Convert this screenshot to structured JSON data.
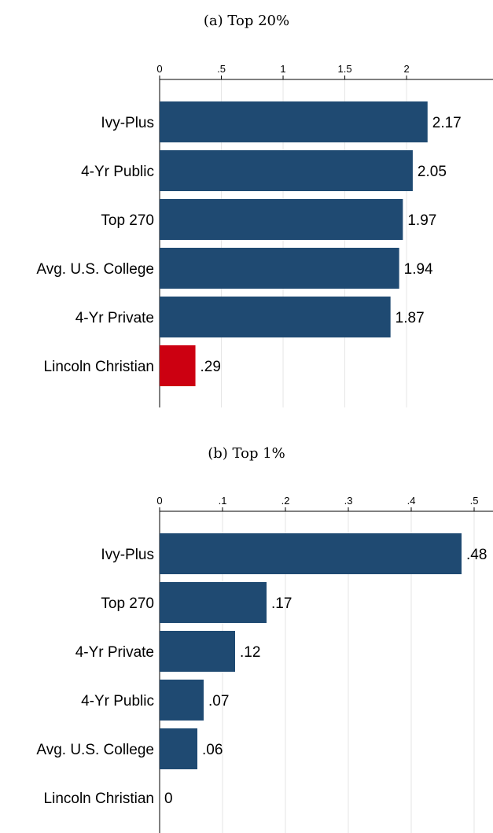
{
  "chart_data": [
    {
      "type": "bar",
      "orientation": "horizontal",
      "title": "(a) Top 20%",
      "categories": [
        "Ivy-Plus",
        "4-Yr Public",
        "Top 270",
        "Avg. U.S. College",
        "4-Yr Private",
        "Lincoln Christian"
      ],
      "values": [
        2.17,
        2.05,
        1.97,
        1.94,
        1.87,
        0.29
      ],
      "value_labels": [
        "2.17",
        "2.05",
        "1.97",
        "1.94",
        "1.87",
        ".29"
      ],
      "xlim": [
        0,
        2.7
      ],
      "xticks": [
        0,
        0.5,
        1,
        1.5,
        2
      ],
      "xtick_labels": [
        "0",
        ".5",
        "1",
        "1.5",
        "2"
      ],
      "bar_colors": [
        "#1f4a72",
        "#1f4a72",
        "#1f4a72",
        "#1f4a72",
        "#1f4a72",
        "#cc0011"
      ],
      "axis_position": "top",
      "grid": true
    },
    {
      "type": "bar",
      "orientation": "horizontal",
      "title": "(b) Top 1%",
      "categories": [
        "Ivy-Plus",
        "Top 270",
        "4-Yr Private",
        "4-Yr Public",
        "Avg. U.S. College",
        "Lincoln Christian"
      ],
      "values": [
        0.48,
        0.17,
        0.12,
        0.07,
        0.06,
        0
      ],
      "value_labels": [
        ".48",
        ".17",
        ".12",
        ".07",
        ".06",
        "0"
      ],
      "xlim": [
        0,
        0.53
      ],
      "xticks": [
        0,
        0.1,
        0.2,
        0.3,
        0.4,
        0.5
      ],
      "xtick_labels": [
        "0",
        ".1",
        ".2",
        ".3",
        ".4",
        ".5"
      ],
      "bar_colors": [
        "#1f4a72",
        "#1f4a72",
        "#1f4a72",
        "#1f4a72",
        "#1f4a72",
        "#1f4a72"
      ],
      "axis_position": "top",
      "grid": true
    }
  ]
}
